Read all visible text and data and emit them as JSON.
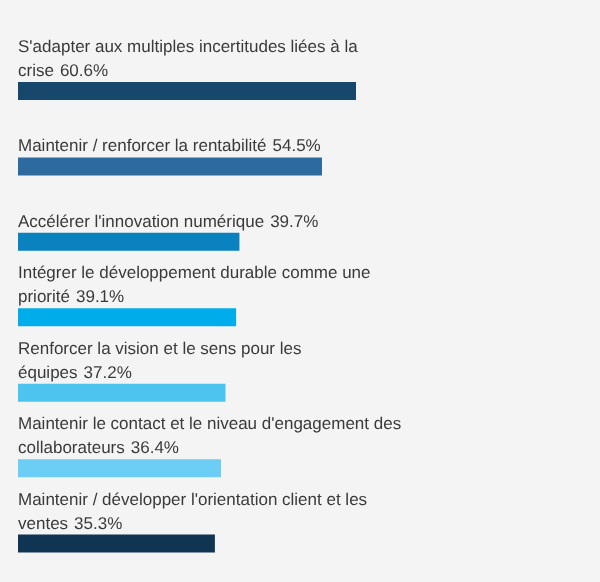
{
  "chart_data": {
    "type": "bar",
    "orientation": "horizontal",
    "categories": [
      "S'adapter aux multiples incertitudes liées à la crise",
      "Maintenir / renforcer la rentabilité",
      "Accélérer l'innovation numérique",
      "Intégrer le développement durable comme une priorité",
      "Renforcer la vision et le sens pour les équipes",
      "Maintenir le contact et le niveau d'engagement des collaborateurs",
      "Maintenir / développer l'orientation client et les ventes"
    ],
    "values": [
      60.6,
      54.5,
      39.7,
      39.1,
      37.2,
      36.4,
      35.3
    ],
    "value_labels": [
      "60.6%",
      "54.5%",
      "39.7%",
      "39.1%",
      "37.2%",
      "36.4%",
      "35.3%"
    ],
    "colors": [
      "#17476b",
      "#2c6aa0",
      "#0a82c0",
      "#00adeb",
      "#4dc3f0",
      "#6ccdf5",
      "#0f3553"
    ]
  }
}
